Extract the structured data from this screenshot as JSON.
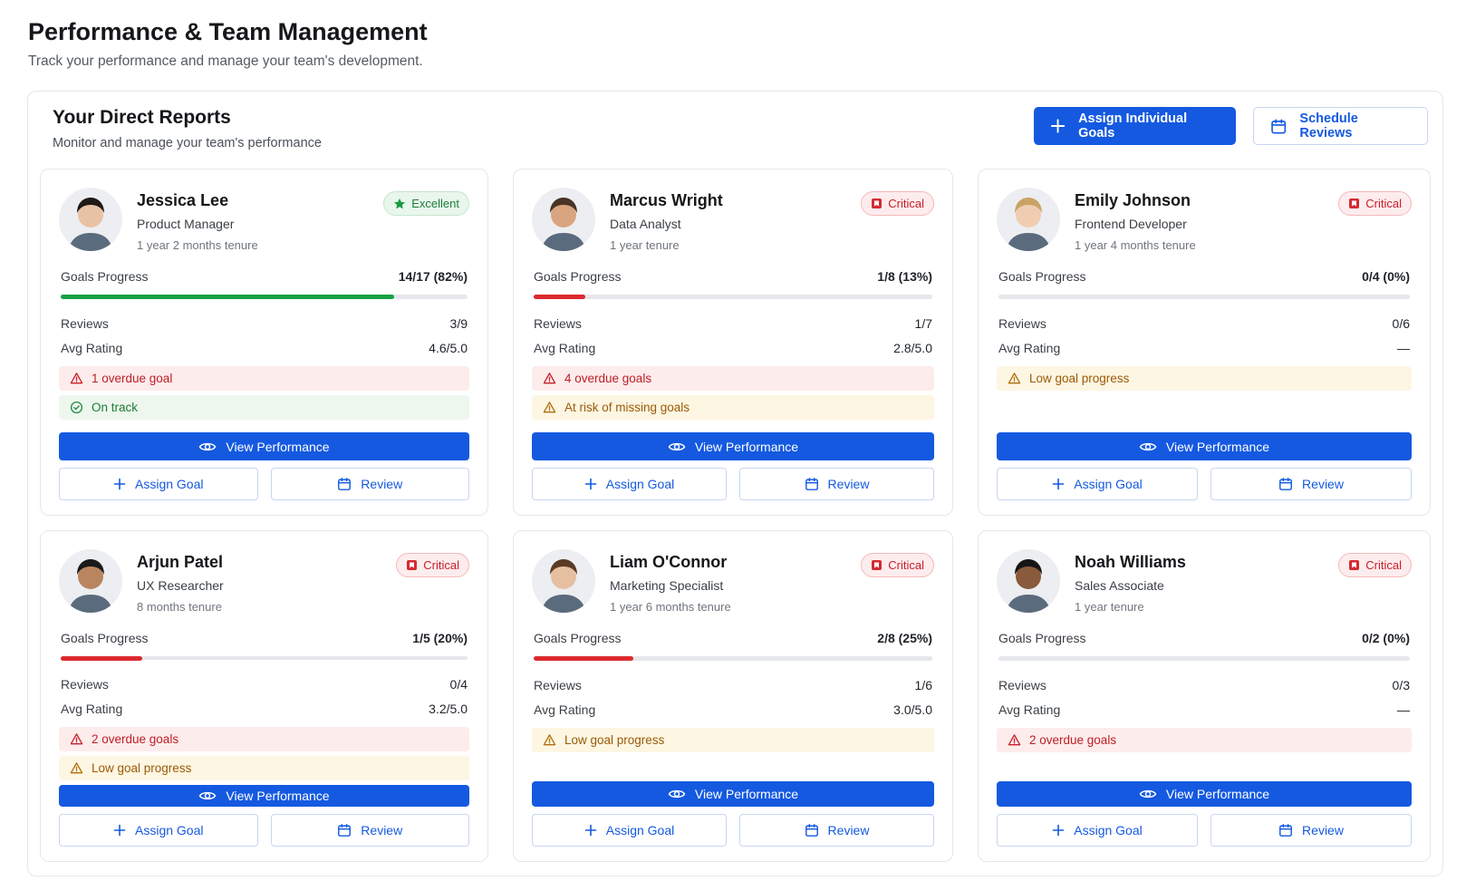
{
  "header": {
    "title": "Performance & Team Management",
    "subtitle": "Track your performance and manage your team's development."
  },
  "panel": {
    "title": "Your Direct Reports",
    "subtitle": "Monitor and manage your team's performance",
    "actions": [
      "Assign Individual Goals",
      "Schedule Reviews"
    ]
  },
  "labels": {
    "goals": "Goals Progress",
    "reviews": "Reviews",
    "rating": "Avg Rating",
    "view": "View Performance",
    "assign": "Assign Goal",
    "review": "Review"
  },
  "reports": [
    {
      "name": "Jessica Lee",
      "role": "Product Manager",
      "tenure": "1 year 2 months tenure",
      "status": "Excellent",
      "tone": "good",
      "goals": {
        "value": 82,
        "label": "14/17 (82%)"
      },
      "reviews": "3/9",
      "rating": "4.6/5.0",
      "alerts": [
        {
          "level": "danger",
          "text": "1 overdue goal"
        },
        {
          "level": "ok",
          "text": "On track"
        }
      ]
    },
    {
      "name": "Marcus Wright",
      "role": "Data Analyst",
      "tenure": "1 year tenure",
      "status": "Critical",
      "tone": "critical",
      "goals": {
        "value": 13,
        "label": "1/8 (13%)"
      },
      "reviews": "1/7",
      "rating": "2.8/5.0",
      "alerts": [
        {
          "level": "danger",
          "text": "4 overdue goals"
        },
        {
          "level": "warning",
          "text": "At risk of missing goals"
        }
      ]
    },
    {
      "name": "Emily Johnson",
      "role": "Frontend Developer",
      "tenure": "1 year 4 months tenure",
      "status": "Critical",
      "tone": "critical",
      "goals": {
        "value": 0,
        "label": "0/4 (0%)"
      },
      "reviews": "0/6",
      "rating": "—",
      "alerts": [
        {
          "level": "warning",
          "text": "Low goal progress"
        }
      ]
    },
    {
      "name": "Arjun Patel",
      "role": "UX Researcher",
      "tenure": "8 months tenure",
      "status": "Critical",
      "tone": "critical",
      "goals": {
        "value": 20,
        "label": "1/5 (20%)"
      },
      "reviews": "0/4",
      "rating": "3.2/5.0",
      "alerts": [
        {
          "level": "danger",
          "text": "2 overdue goals"
        },
        {
          "level": "warning",
          "text": "Low goal progress"
        }
      ]
    },
    {
      "name": "Liam O'Connor",
      "role": "Marketing Specialist",
      "tenure": "1 year 6 months tenure",
      "status": "Critical",
      "tone": "critical",
      "goals": {
        "value": 25,
        "label": "2/8 (25%)"
      },
      "reviews": "1/6",
      "rating": "3.0/5.0",
      "alerts": [
        {
          "level": "warning",
          "text": "Low goal progress"
        }
      ]
    },
    {
      "name": "Noah Williams",
      "role": "Sales Associate",
      "tenure": "1 year tenure",
      "status": "Critical",
      "tone": "critical",
      "goals": {
        "value": 0,
        "label": "0/2 (0%)"
      },
      "reviews": "0/3",
      "rating": "—",
      "alerts": [
        {
          "level": "danger",
          "text": "2 overdue goals"
        }
      ]
    }
  ]
}
